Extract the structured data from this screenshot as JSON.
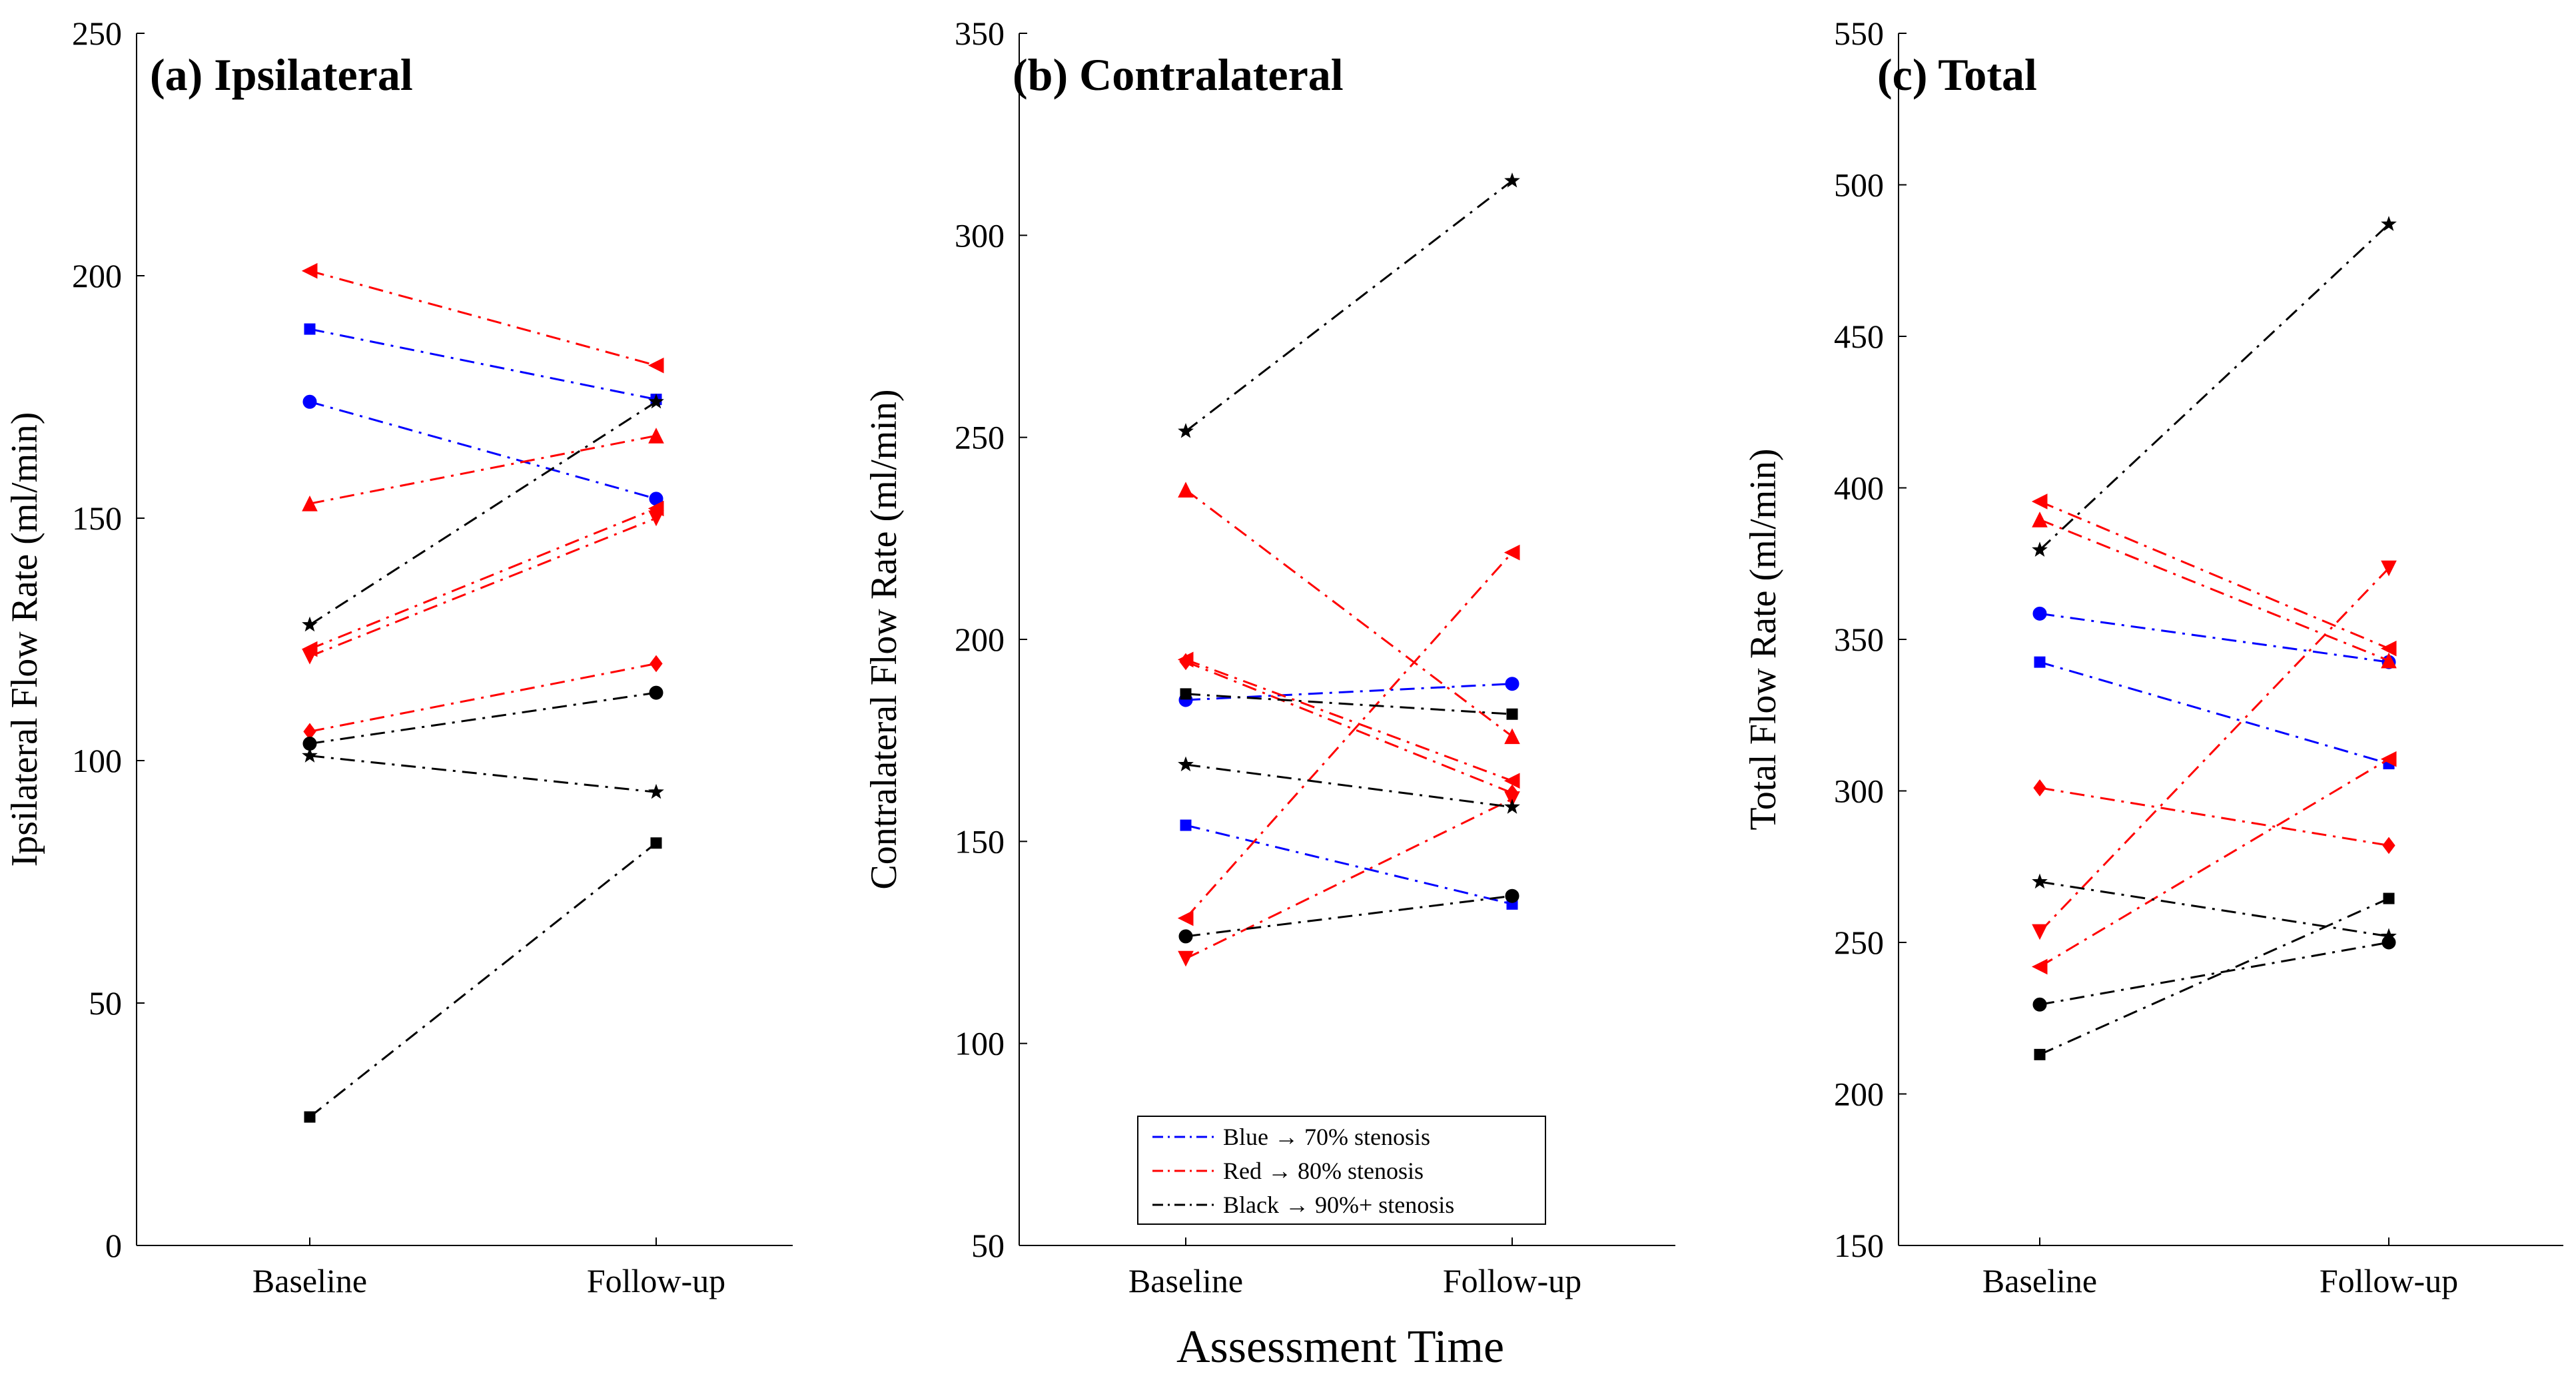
{
  "colors": {
    "blue": "#0000ff",
    "red": "#ff0000",
    "black": "#000000"
  },
  "xlabel": "Assessment Time",
  "legend": [
    {
      "label": "Blue → 70% stenosis",
      "color": "blue"
    },
    {
      "label": "Red → 80% stenosis",
      "color": "red"
    },
    {
      "label": "Black → 90%+ stenosis",
      "color": "black"
    }
  ],
  "chart_data": [
    {
      "type": "line",
      "title": "(a) Ipsilateral",
      "ylabel": "Ipsilateral Flow Rate (ml/min)",
      "categories": [
        "Baseline",
        "Follow-up"
      ],
      "ylim": [
        0,
        250
      ],
      "yticks": [
        0,
        50,
        100,
        150,
        200,
        250
      ],
      "series": [
        {
          "color": "blue",
          "marker": "square",
          "values": [
            189,
            174.5
          ]
        },
        {
          "color": "blue",
          "marker": "circle",
          "values": [
            174,
            154
          ]
        },
        {
          "color": "red",
          "marker": "triangle-left",
          "values": [
            201,
            181.5
          ]
        },
        {
          "color": "red",
          "marker": "triangle-up",
          "values": [
            153,
            167
          ]
        },
        {
          "color": "red",
          "marker": "triangle-left",
          "values": [
            123,
            152
          ]
        },
        {
          "color": "red",
          "marker": "triangle-down",
          "values": [
            121.5,
            150
          ]
        },
        {
          "color": "red",
          "marker": "diamond",
          "values": [
            106,
            120
          ]
        },
        {
          "color": "black",
          "marker": "star",
          "values": [
            128,
            174
          ]
        },
        {
          "color": "black",
          "marker": "circle",
          "values": [
            103.5,
            114
          ]
        },
        {
          "color": "black",
          "marker": "star",
          "values": [
            101,
            93.5
          ]
        },
        {
          "color": "black",
          "marker": "square",
          "values": [
            26.5,
            83
          ]
        }
      ]
    },
    {
      "type": "line",
      "title": "(b) Contralateral",
      "ylabel": "Contralateral Flow Rate (ml/min)",
      "categories": [
        "Baseline",
        "Follow-up"
      ],
      "ylim": [
        50,
        350
      ],
      "yticks": [
        50,
        100,
        150,
        200,
        250,
        300,
        350
      ],
      "legend_position": "bottom-center",
      "series": [
        {
          "color": "blue",
          "marker": "circle",
          "values": [
            185,
            189
          ]
        },
        {
          "color": "blue",
          "marker": "square",
          "values": [
            154,
            134.5
          ]
        },
        {
          "color": "red",
          "marker": "triangle-up",
          "values": [
            237,
            176
          ]
        },
        {
          "color": "red",
          "marker": "triangle-left",
          "values": [
            195,
            165
          ]
        },
        {
          "color": "red",
          "marker": "diamond",
          "values": [
            194.5,
            162
          ]
        },
        {
          "color": "red",
          "marker": "triangle-left",
          "values": [
            131,
            221.5
          ]
        },
        {
          "color": "red",
          "marker": "triangle-down",
          "values": [
            121,
            160.5
          ]
        },
        {
          "color": "black",
          "marker": "star",
          "values": [
            251.5,
            313.5
          ]
        },
        {
          "color": "black",
          "marker": "square",
          "values": [
            186.5,
            181.5
          ]
        },
        {
          "color": "black",
          "marker": "star",
          "values": [
            169,
            158.5
          ]
        },
        {
          "color": "black",
          "marker": "circle",
          "values": [
            126.5,
            136.5
          ]
        }
      ]
    },
    {
      "type": "line",
      "title": "(c) Total",
      "ylabel": "Total Flow Rate (ml/min)",
      "categories": [
        "Baseline",
        "Follow-up"
      ],
      "ylim": [
        150,
        550
      ],
      "yticks": [
        150,
        200,
        250,
        300,
        350,
        400,
        450,
        500,
        550
      ],
      "series": [
        {
          "color": "blue",
          "marker": "circle",
          "values": [
            358.5,
            342.5
          ]
        },
        {
          "color": "blue",
          "marker": "square",
          "values": [
            342.5,
            309
          ]
        },
        {
          "color": "red",
          "marker": "triangle-left",
          "values": [
            395.5,
            347
          ]
        },
        {
          "color": "red",
          "marker": "triangle-up",
          "values": [
            389.5,
            343
          ]
        },
        {
          "color": "red",
          "marker": "diamond",
          "values": [
            301,
            282
          ]
        },
        {
          "color": "red",
          "marker": "triangle-down",
          "values": [
            253.5,
            373.5
          ]
        },
        {
          "color": "red",
          "marker": "triangle-left",
          "values": [
            242,
            310.5
          ]
        },
        {
          "color": "black",
          "marker": "star",
          "values": [
            379.5,
            487
          ]
        },
        {
          "color": "black",
          "marker": "star",
          "values": [
            270,
            252
          ]
        },
        {
          "color": "black",
          "marker": "circle",
          "values": [
            229.5,
            250
          ]
        },
        {
          "color": "black",
          "marker": "square",
          "values": [
            213,
            264.5
          ]
        }
      ]
    }
  ]
}
